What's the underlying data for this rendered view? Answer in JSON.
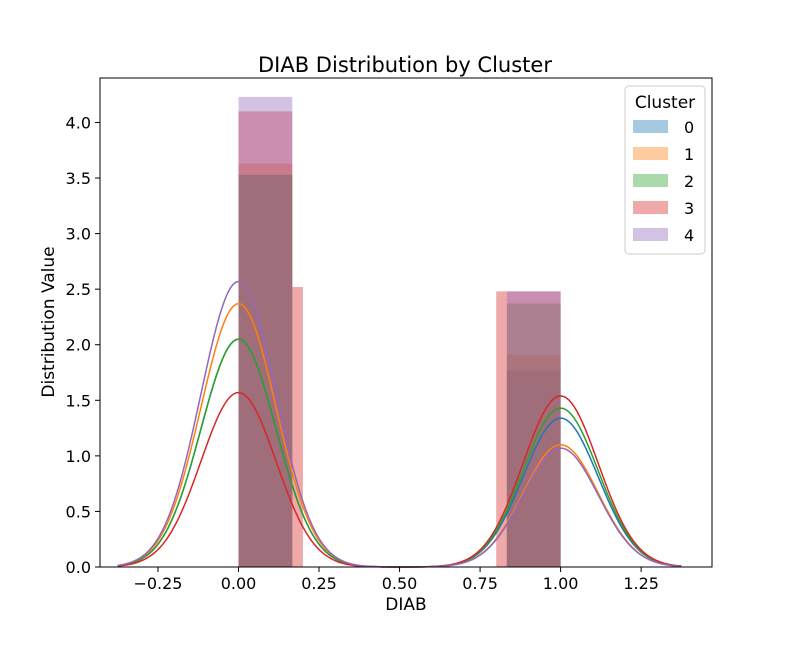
{
  "chart_data": {
    "type": "bar",
    "title": "DIAB Distribution by Cluster",
    "xlabel": "DIAB",
    "ylabel": "Distribution Value",
    "xlim": [
      -0.43,
      1.47
    ],
    "ylim": [
      0,
      4.4
    ],
    "xticks": [
      -0.25,
      0.0,
      0.25,
      0.5,
      0.75,
      1.0,
      1.25
    ],
    "xtick_labels": [
      "−0.25",
      "0.00",
      "0.25",
      "0.50",
      "0.75",
      "1.00",
      "1.25"
    ],
    "yticks": [
      0,
      0.5,
      1,
      1.5,
      2,
      2.5,
      3,
      3.5,
      4
    ],
    "ytick_labels": [
      "0.0",
      "0.5",
      "1.0",
      "1.5",
      "2.0",
      "2.5",
      "3.0",
      "3.5",
      "4.0"
    ],
    "grid": false,
    "legend": {
      "title": "Cluster",
      "position": "top-right"
    },
    "series": [
      {
        "name": "0",
        "color": "#1f77b4",
        "bars": [
          {
            "x0": 0.0,
            "x1": 0.167,
            "height": 3.53
          },
          {
            "x0": 0.833,
            "x1": 1.0,
            "height": 1.77
          }
        ],
        "kde_peaks": [
          2.05,
          1.34
        ]
      },
      {
        "name": "1",
        "color": "#ff7f0e",
        "bars": [
          {
            "x0": 0.0,
            "x1": 0.167,
            "height": 3.63
          },
          {
            "x0": 0.833,
            "x1": 1.0,
            "height": 1.91
          }
        ],
        "kde_peaks": [
          2.37,
          1.1
        ]
      },
      {
        "name": "2",
        "color": "#2ca02c",
        "bars": [
          {
            "x0": 0.0,
            "x1": 0.167,
            "height": 3.53
          },
          {
            "x0": 0.833,
            "x1": 1.0,
            "height": 2.37
          }
        ],
        "kde_peaks": [
          2.05,
          1.43
        ]
      },
      {
        "name": "3",
        "color": "#d62728",
        "bars": [
          {
            "x0": 0.0,
            "x1": 0.167,
            "height": 4.1
          },
          {
            "x0": 0.167,
            "x1": 0.2,
            "height": 2.52
          },
          {
            "x0": 0.8,
            "x1": 0.833,
            "height": 2.48
          },
          {
            "x0": 0.833,
            "x1": 1.0,
            "height": 2.48
          }
        ],
        "kde_peaks": [
          1.57,
          1.54
        ]
      },
      {
        "name": "4",
        "color": "#9467bd",
        "bars": [
          {
            "x0": 0.0,
            "x1": 0.167,
            "height": 4.23
          },
          {
            "x0": 0.833,
            "x1": 1.0,
            "height": 2.48
          }
        ],
        "kde_peaks": [
          2.57,
          1.07
        ]
      }
    ]
  }
}
